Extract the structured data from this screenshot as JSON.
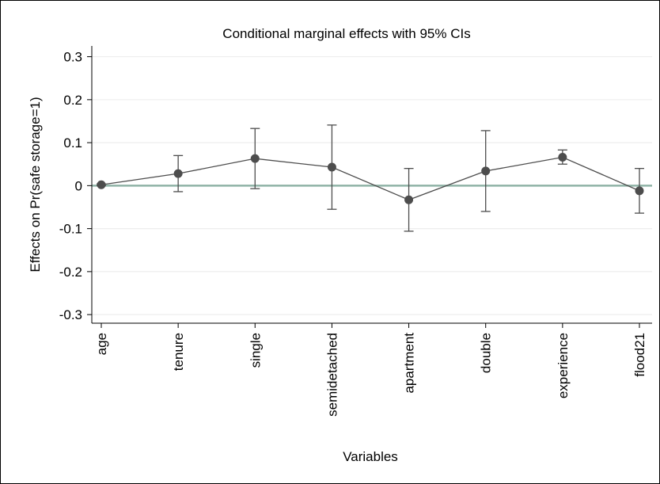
{
  "chart_data": {
    "type": "line",
    "title": "Conditional marginal effects with 95% CIs",
    "xlabel": "Variables",
    "ylabel": "Effects on Pr(safe storage=1)",
    "categories": [
      "age",
      "tenure",
      "single",
      "semidetached",
      "apartment",
      "double",
      "experience",
      "flood21"
    ],
    "series": [
      {
        "values": [
          0.002,
          0.028,
          0.063,
          0.043,
          -0.033,
          0.034,
          0.066,
          -0.012
        ],
        "ci_lower": [
          0.0,
          -0.014,
          -0.007,
          -0.055,
          -0.106,
          -0.06,
          0.05,
          -0.064
        ],
        "ci_upper": [
          0.004,
          0.07,
          0.133,
          0.141,
          0.04,
          0.128,
          0.083,
          0.04
        ]
      }
    ],
    "ylim": [
      -0.32,
      0.325
    ],
    "yticks": [
      0.3,
      0.2,
      0.1,
      0,
      -0.1,
      -0.2,
      -0.3
    ],
    "ytick_labels": [
      "0.3",
      "0.2",
      "0.1",
      "0",
      "-0.1",
      "-0.2",
      "-0.3"
    ],
    "reference_line": 0,
    "grid": true,
    "colors": {
      "series": "#4d4d4d",
      "reference_line": "#8fb3a6",
      "grid": "#eeeeee"
    }
  }
}
